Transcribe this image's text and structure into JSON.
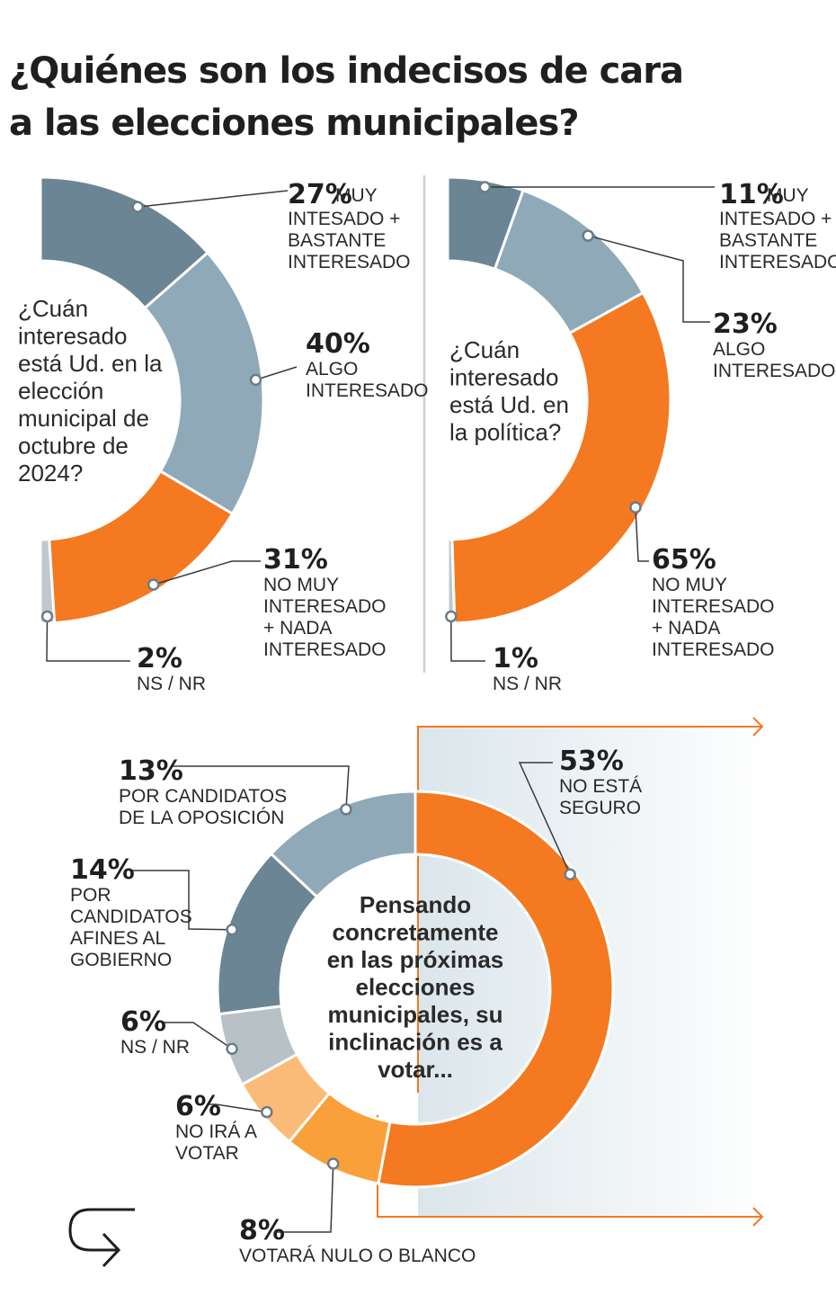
{
  "title": {
    "line1": "¿Quiénes son los indecisos de cara",
    "line2": "a las elecciones municipales?"
  },
  "colors": {
    "dark_slate": "#6b8594",
    "light_slate": "#8fa9b8",
    "orange": "#f47920",
    "light_orange": "#f9a03a",
    "pale_orange": "#fbbb78",
    "grey": "#b8c2c6",
    "nsnr_grey": "#c0c8cb",
    "highlight_bg": "#dfe9ee",
    "outline_orange": "#f47920"
  },
  "icons": {
    "logo": "arrow-hook-logo-icon"
  },
  "chart_data": [
    {
      "type": "pie",
      "question": [
        "¿Cuán",
        "interesado",
        "está Ud. en la",
        "elección",
        "municipal de",
        "octubre de",
        "2024?"
      ],
      "slices": [
        {
          "value": 27,
          "pct_label": "27%",
          "label": [
            "MUY",
            "INTESADO +",
            "BASTANTE",
            "INTERESADO"
          ],
          "color": "#6b8594"
        },
        {
          "value": 40,
          "pct_label": "40%",
          "label": [
            "ALGO",
            "INTERESADO"
          ],
          "color": "#8fa9b8"
        },
        {
          "value": 31,
          "pct_label": "31%",
          "label": [
            "NO MUY",
            "INTERESADO",
            "+ NADA",
            "INTERESADO"
          ],
          "color": "#f47920"
        },
        {
          "value": 2,
          "pct_label": "2%",
          "label": [
            "NS / NR"
          ],
          "color": "#c0c8cb"
        }
      ]
    },
    {
      "type": "pie",
      "question": [
        "¿Cuán",
        "interesado",
        "está Ud. en",
        "la política?"
      ],
      "slices": [
        {
          "value": 11,
          "pct_label": "11%",
          "label": [
            "MUY",
            "INTESADO +",
            "BASTANTE",
            "INTERESADO"
          ],
          "color": "#6b8594"
        },
        {
          "value": 23,
          "pct_label": "23%",
          "label": [
            "ALGO",
            "INTERESADO"
          ],
          "color": "#8fa9b8"
        },
        {
          "value": 65,
          "pct_label": "65%",
          "label": [
            "NO MUY",
            "INTERESADO",
            "+ NADA",
            "INTERESADO"
          ],
          "color": "#f47920"
        },
        {
          "value": 1,
          "pct_label": "1%",
          "label": [
            "NS / NR"
          ],
          "color": "#c0c8cb"
        }
      ]
    },
    {
      "type": "pie",
      "question": [
        "Pensando",
        "concretamente",
        "en las próximas",
        "elecciones",
        "municipales, su",
        "inclinación es a",
        "votar..."
      ],
      "slices": [
        {
          "value": 53,
          "pct_label": "53%",
          "label": [
            "NO ESTÁ",
            "SEGURO"
          ],
          "color": "#f47920"
        },
        {
          "value": 8,
          "pct_label": "8%",
          "label": [
            "VOTARÁ NULO O BLANCO"
          ],
          "color": "#f9a03a"
        },
        {
          "value": 6,
          "pct_label": "6%",
          "label": [
            "NO IRÁ A",
            "VOTAR"
          ],
          "color": "#fbbb78"
        },
        {
          "value": 6,
          "pct_label": "6%",
          "label": [
            "NS / NR"
          ],
          "color": "#b8c2c6"
        },
        {
          "value": 14,
          "pct_label": "14%",
          "label": [
            "POR",
            "CANDIDATOS",
            "AFINES AL",
            "GOBIERNO"
          ],
          "color": "#6b8594"
        },
        {
          "value": 13,
          "pct_label": "13%",
          "label": [
            "POR CANDIDATOS",
            "DE LA OPOSICIÓN"
          ],
          "color": "#8fa9b8"
        }
      ]
    }
  ]
}
